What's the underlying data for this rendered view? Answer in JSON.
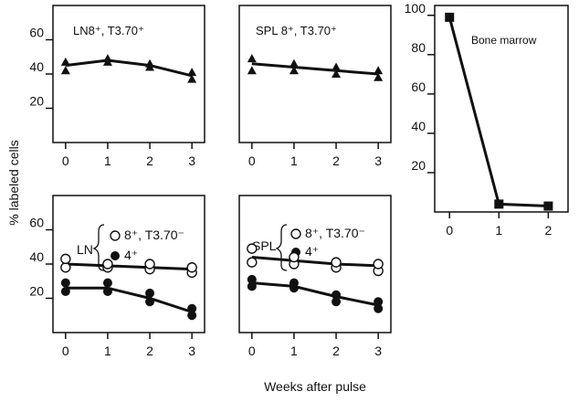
{
  "chart_data": [
    {
      "type": "line",
      "panel": "ln_top",
      "title": "LN8⁺, T3.70⁺",
      "x": [
        0,
        1,
        2,
        3
      ],
      "xlim": [
        -0.3,
        3.3
      ],
      "ylim": [
        0,
        80
      ],
      "yticks": [
        20,
        40,
        60
      ],
      "series": [
        {
          "name": "",
          "marker": "triangle",
          "fill": "filled",
          "mean": [
            45,
            48,
            45,
            39
          ],
          "points": [
            [
              0,
              42
            ],
            [
              0,
              47
            ],
            [
              1,
              47
            ],
            [
              1,
              49
            ],
            [
              2,
              44
            ],
            [
              2,
              46
            ],
            [
              3,
              37
            ],
            [
              3,
              41
            ]
          ]
        }
      ]
    },
    {
      "type": "line",
      "panel": "spl_top",
      "title": "SPL 8⁺, T3.70⁺",
      "x": [
        0,
        1,
        2,
        3
      ],
      "xlim": [
        -0.3,
        3.3
      ],
      "ylim": [
        0,
        80
      ],
      "yticks": [],
      "series": [
        {
          "name": "",
          "marker": "triangle",
          "fill": "filled",
          "mean": [
            46,
            44,
            42,
            40
          ],
          "points": [
            [
              0,
              42
            ],
            [
              0,
              49
            ],
            [
              1,
              42
            ],
            [
              1,
              46
            ],
            [
              2,
              40
            ],
            [
              2,
              44
            ],
            [
              3,
              38
            ],
            [
              3,
              42
            ]
          ]
        }
      ]
    },
    {
      "type": "line",
      "panel": "ln_bottom",
      "title": "LN",
      "x": [
        0,
        1,
        2,
        3
      ],
      "xlim": [
        -0.3,
        3.3
      ],
      "ylim": [
        0,
        80
      ],
      "yticks": [
        20,
        40,
        60
      ],
      "legend": [
        "8⁺, T3.70⁻",
        "4⁺"
      ],
      "series": [
        {
          "name": "8⁺, T3.70⁻",
          "marker": "circle",
          "fill": "open",
          "mean": [
            40,
            39,
            38,
            37
          ],
          "points": [
            [
              0,
              38
            ],
            [
              0,
              43
            ],
            [
              1,
              38
            ],
            [
              1,
              40
            ],
            [
              2,
              37
            ],
            [
              2,
              40
            ],
            [
              3,
              35
            ],
            [
              3,
              38
            ]
          ]
        },
        {
          "name": "4⁺",
          "marker": "circle",
          "fill": "filled",
          "mean": [
            26,
            26,
            20,
            12
          ],
          "points": [
            [
              0,
              24
            ],
            [
              0,
              29
            ],
            [
              1,
              24
            ],
            [
              1,
              29
            ],
            [
              2,
              18
            ],
            [
              2,
              23
            ],
            [
              3,
              10
            ],
            [
              3,
              14
            ]
          ]
        }
      ]
    },
    {
      "type": "line",
      "panel": "spl_bottom",
      "title": "SPL",
      "x": [
        0,
        1,
        2,
        3
      ],
      "xlim": [
        -0.3,
        3.3
      ],
      "ylim": [
        0,
        80
      ],
      "yticks": [],
      "legend": [
        "8⁺, T3.70⁻",
        "4⁺"
      ],
      "series": [
        {
          "name": "8⁺, T3.70⁻",
          "marker": "circle",
          "fill": "open",
          "mean": [
            44,
            42,
            40,
            39
          ],
          "points": [
            [
              0,
              41
            ],
            [
              0,
              49
            ],
            [
              1,
              40
            ],
            [
              1,
              44
            ],
            [
              2,
              38
            ],
            [
              2,
              41
            ],
            [
              3,
              36
            ],
            [
              3,
              40
            ]
          ]
        },
        {
          "name": "4⁺",
          "marker": "circle",
          "fill": "filled",
          "mean": [
            29,
            27,
            21,
            16
          ],
          "points": [
            [
              0,
              27
            ],
            [
              0,
              31
            ],
            [
              1,
              26
            ],
            [
              1,
              29
            ],
            [
              2,
              18
            ],
            [
              2,
              22
            ],
            [
              3,
              14
            ],
            [
              3,
              18
            ]
          ]
        }
      ]
    },
    {
      "type": "line",
      "panel": "bone_marrow",
      "title": "Bone marrow",
      "x": [
        0,
        1,
        2
      ],
      "xlim": [
        -0.3,
        2.4
      ],
      "ylim": [
        0,
        105
      ],
      "yticks": [
        20,
        40,
        60,
        80,
        100
      ],
      "series": [
        {
          "name": "",
          "marker": "square",
          "fill": "filled",
          "mean": [
            99,
            4,
            3
          ],
          "points": [
            [
              0,
              99
            ],
            [
              1,
              4
            ],
            [
              2,
              3
            ]
          ]
        }
      ]
    }
  ],
  "labels": {
    "ylabel": "% labeled cells",
    "xlabel": "Weeks after pulse"
  },
  "legend_text": {
    "ln_cd8": "8⁺, T3.70⁻",
    "ln_cd4": "4⁺",
    "spl_cd8": "8⁺, T3.70⁻",
    "spl_cd4": "4⁺"
  },
  "colors": {
    "ink": "#111111",
    "background": "#ffffff"
  }
}
